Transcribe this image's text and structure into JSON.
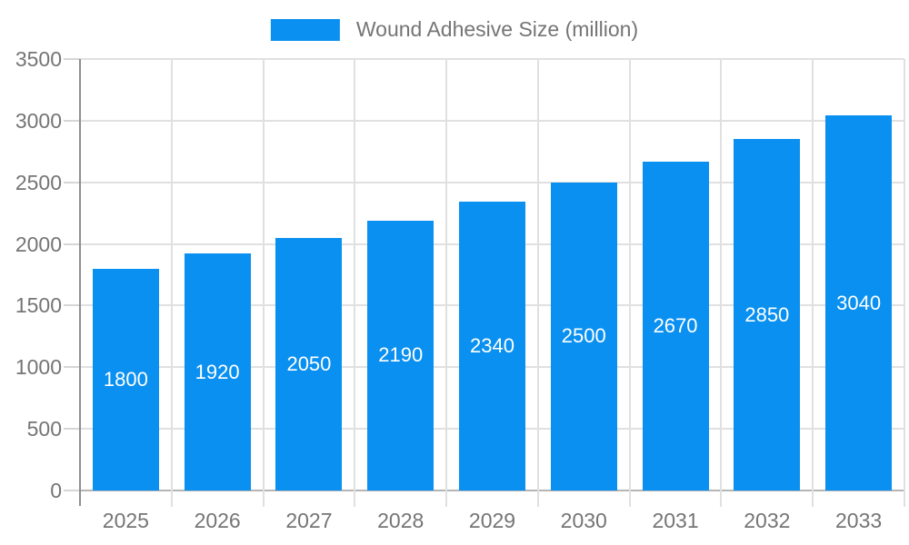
{
  "legend": {
    "label": "Wound Adhesive Size (million)"
  },
  "chart_data": {
    "type": "bar",
    "title": "Wound Adhesive Size (million)",
    "categories": [
      "2025",
      "2026",
      "2027",
      "2028",
      "2029",
      "2030",
      "2031",
      "2032",
      "2033"
    ],
    "values": [
      1800,
      1920,
      2050,
      2190,
      2340,
      2500,
      2670,
      2850,
      3040
    ],
    "xlabel": "",
    "ylabel": "",
    "ylim": [
      0,
      3500
    ],
    "yticks": [
      0,
      500,
      1000,
      1500,
      2000,
      2500,
      3000,
      3500
    ],
    "grid": true,
    "legend_position": "top-center",
    "bar_labels_inside": true,
    "colors": {
      "bar": "#0a90f0",
      "value_label": "#ffffff",
      "axis_text": "#757575",
      "gridline": "#e0e0e0",
      "tick": "#d6d6d6",
      "baseline": "#b5b5b5",
      "axis_line": "#8f8f8f",
      "background": "#ffffff"
    }
  }
}
